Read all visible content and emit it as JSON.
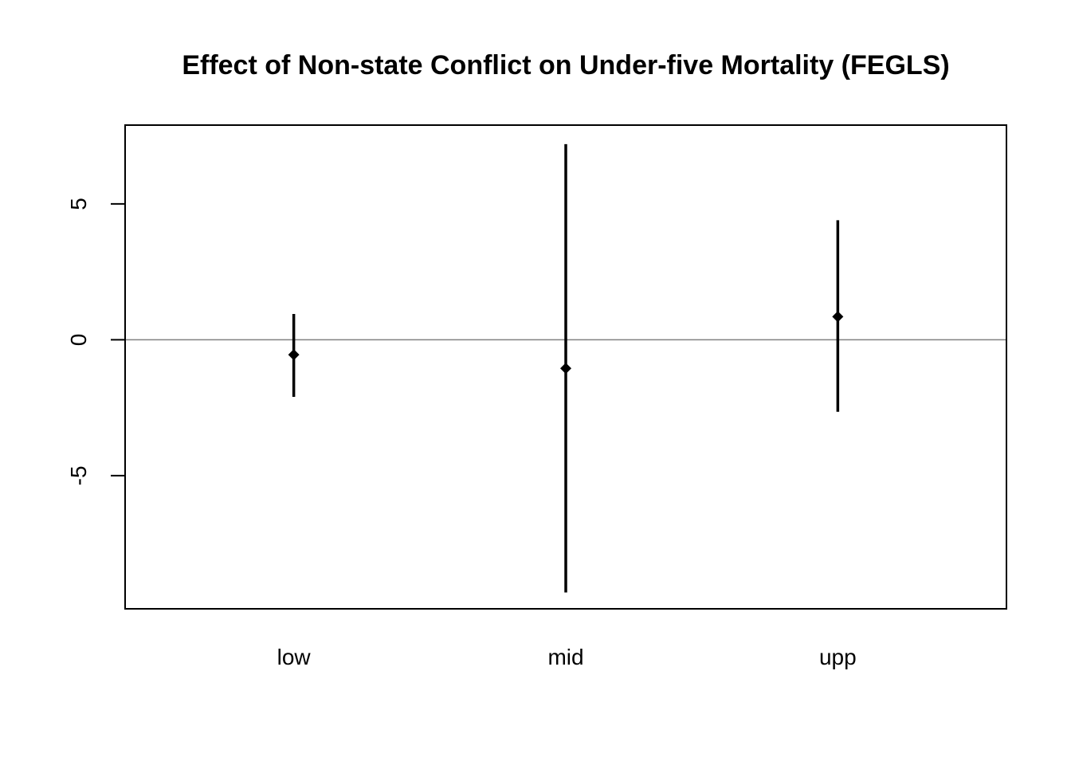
{
  "chart_data": {
    "type": "errorbar",
    "title": "Effect of Non-state Conflict on Under-five Mortality (FEGLS)",
    "xlabel": "",
    "ylabel": "",
    "categories": [
      "low",
      "mid",
      "upp"
    ],
    "estimates": [
      -0.55,
      -1.05,
      0.85
    ],
    "lower": [
      -2.1,
      -9.3,
      -2.65
    ],
    "upper": [
      0.95,
      7.2,
      4.4
    ],
    "yticks": [
      "-5",
      "0",
      "5"
    ],
    "ytick_values": [
      -5,
      0,
      5
    ],
    "ylim": [
      -9.9,
      7.9
    ],
    "xlim": [
      0.38,
      3.62
    ],
    "reference_line": 0,
    "grid": false,
    "legend": "none",
    "colors": {
      "marks": "#000000",
      "reference_line": "#808080",
      "frame": "#000000"
    }
  }
}
